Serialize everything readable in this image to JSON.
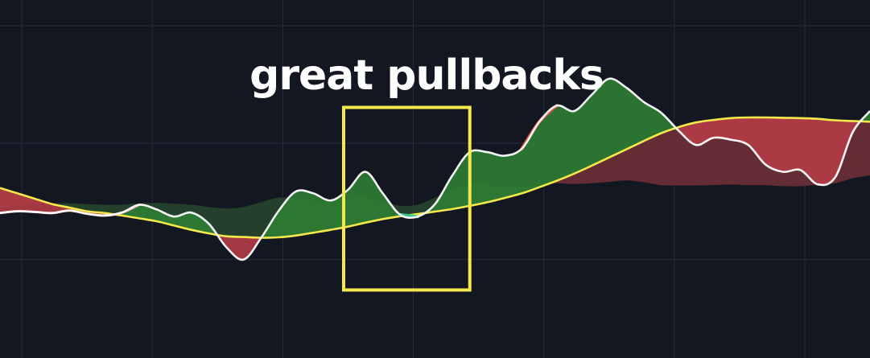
{
  "chart_data": {
    "type": "area",
    "annotation": {
      "text": "great pullbacks"
    },
    "xlim": [
      0,
      100
    ],
    "ylim": [
      0,
      100
    ],
    "grid": true,
    "colors": {
      "background": "#131722",
      "grid": "#2a2e39",
      "oscillator_line": "#ffffff",
      "signal_line": "#f5e84a",
      "area_bullish": "#2e7d32",
      "area_bearish": "#b43c46",
      "shadow_bullish": "#27452d",
      "shadow_bearish": "#6e2f36",
      "bullish_cross": "#3ec48f",
      "bearish_cross": "#e0504a",
      "annotation_box": "#f5e84a"
    },
    "highlight_box": {
      "x_start": 39.5,
      "x_end": 54,
      "y_start": 19,
      "y_end": 70
    },
    "series": [
      {
        "role": "oscillator",
        "x": [
          0,
          2,
          4,
          6,
          8,
          10,
          12,
          14,
          16,
          18,
          20,
          22,
          24,
          26,
          28,
          30,
          32,
          34,
          36,
          38,
          40,
          42,
          44,
          46,
          48,
          50,
          52,
          54,
          56,
          58,
          60,
          62,
          64,
          66,
          68,
          70,
          72,
          74,
          76,
          78,
          80,
          82,
          84,
          86,
          88,
          90,
          92,
          94,
          96,
          98,
          100
        ],
        "values": [
          40.5,
          41,
          40.8,
          40.5,
          41.2,
          40.3,
          39.8,
          40.6,
          42.8,
          41.5,
          39.5,
          40.6,
          37.5,
          31,
          27.5,
          33.5,
          41,
          46.5,
          46,
          44,
          47,
          52,
          46,
          40,
          39.5,
          43,
          51,
          57.5,
          57.5,
          56.5,
          58.5,
          66,
          70.5,
          69,
          73.5,
          78,
          75.5,
          71.5,
          68.5,
          63.5,
          59.5,
          61.5,
          61,
          59.5,
          54,
          52,
          52.5,
          48.5,
          50.5,
          63,
          69
        ]
      },
      {
        "role": "signal",
        "x": [
          0,
          2,
          4,
          6,
          8,
          10,
          12,
          14,
          16,
          18,
          20,
          22,
          24,
          26,
          28,
          30,
          32,
          34,
          36,
          38,
          40,
          42,
          44,
          46,
          48,
          50,
          52,
          54,
          56,
          58,
          60,
          62,
          64,
          66,
          68,
          70,
          72,
          74,
          76,
          78,
          80,
          82,
          84,
          86,
          88,
          90,
          92,
          94,
          96,
          98,
          100
        ],
        "values": [
          47.5,
          46,
          44.5,
          43,
          42,
          41,
          40.5,
          39.8,
          39,
          38.2,
          37,
          35.8,
          34.8,
          34,
          33.8,
          33.6,
          33.7,
          34.2,
          35,
          35.8,
          36.7,
          37.8,
          38.8,
          39.6,
          40.2,
          40.9,
          41.6,
          42.5,
          43.5,
          44.7,
          46,
          47.7,
          49.5,
          51.5,
          53.7,
          56,
          58.3,
          60.6,
          62.8,
          64.5,
          65.8,
          66.5,
          67,
          67.2,
          67.2,
          67.1,
          67,
          66.8,
          66.4,
          66.2,
          66
        ]
      },
      {
        "role": "shadow",
        "x": [
          0,
          2,
          4,
          6,
          8,
          10,
          12,
          14,
          16,
          18,
          20,
          22,
          24,
          26,
          28,
          30,
          32,
          34,
          36,
          38,
          40,
          42,
          44,
          46,
          48,
          50,
          52,
          54,
          56,
          58,
          60,
          62,
          64,
          66,
          68,
          70,
          72,
          74,
          76,
          78,
          80,
          82,
          84,
          86,
          88,
          90,
          92,
          94,
          96,
          98,
          100
        ],
        "values": [
          42,
          42.5,
          43,
          43.2,
          43.2,
          43,
          42.8,
          42.8,
          43.2,
          43.3,
          43.1,
          42.8,
          42.2,
          41.8,
          42.2,
          43.5,
          44.8,
          44.6,
          44,
          43.8,
          44.6,
          44.8,
          43.8,
          42.5,
          42.8,
          44.8,
          47.2,
          48.5,
          48.3,
          47.9,
          48,
          48.4,
          48.8,
          48.6,
          48.8,
          49.2,
          49.6,
          49.1,
          48.3,
          48.2,
          48.2,
          48.3,
          48.5,
          48.3,
          48.3,
          48,
          48,
          48.4,
          48.8,
          50.2,
          51
        ]
      }
    ]
  }
}
